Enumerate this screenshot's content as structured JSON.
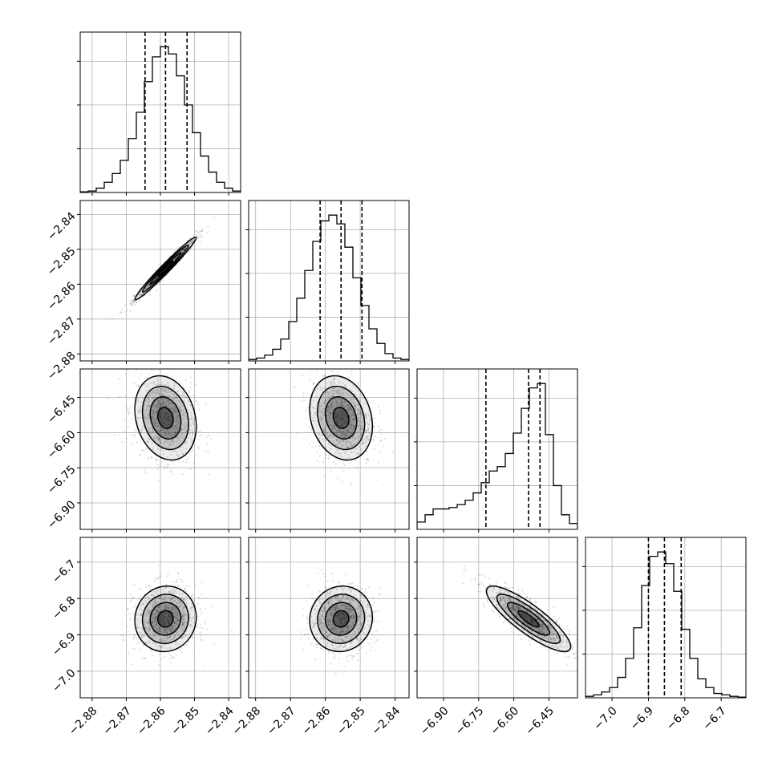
{
  "chart_data": {
    "type": "corner",
    "parameters": [
      {
        "range": [
          -2.8835,
          -2.8365
        ],
        "ticks": [
          -2.88,
          -2.87,
          -2.86,
          -2.85,
          -2.84
        ],
        "tick_labels": [
          "−2.88",
          "−2.87",
          "−2.86",
          "−2.85",
          "−2.84"
        ],
        "quantiles": [
          -2.8645,
          -2.8585,
          -2.8522
        ],
        "mean": -2.8585,
        "sd": 0.0045
      },
      {
        "range": [
          -2.882,
          -2.836
        ],
        "ticks": [
          -2.88,
          -2.87,
          -2.86,
          -2.85,
          -2.84
        ],
        "tick_labels": [
          "−2.88",
          "−2.87",
          "−2.86",
          "−2.85",
          "−2.84"
        ],
        "quantiles": [
          -2.8615,
          -2.8555,
          -2.8495
        ],
        "mean": -2.8555,
        "sd": 0.0045
      },
      {
        "range": [
          -7.013,
          -6.328
        ],
        "ticks": [
          -6.9,
          -6.75,
          -6.6,
          -6.45
        ],
        "tick_labels": [
          "−6.90",
          "−6.75",
          "−6.60",
          "−6.45"
        ],
        "quantiles": [
          -6.719,
          -6.537,
          -6.488
        ],
        "mean": -6.537,
        "sd": 0.09
      },
      {
        "range": [
          -7.073,
          -6.632
        ],
        "ticks": [
          -7.0,
          -6.9,
          -6.8,
          -6.7
        ],
        "tick_labels": [
          "−7.0",
          "−6.9",
          "−6.8",
          "−6.7"
        ],
        "quantiles": [
          -6.9,
          -6.856,
          -6.81
        ],
        "mean": -6.856,
        "sd": 0.045
      }
    ],
    "histograms": [
      [
        0.005,
        0.01,
        0.03,
        0.07,
        0.13,
        0.22,
        0.37,
        0.55,
        0.76,
        0.93,
        1.0,
        0.95,
        0.8,
        0.6,
        0.41,
        0.25,
        0.14,
        0.07,
        0.03,
        0.01
      ],
      [
        0.01,
        0.02,
        0.04,
        0.08,
        0.15,
        0.27,
        0.43,
        0.62,
        0.82,
        0.96,
        1.0,
        0.94,
        0.78,
        0.57,
        0.38,
        0.22,
        0.12,
        0.05,
        0.02,
        0.01
      ],
      [
        0.05,
        0.1,
        0.14,
        0.14,
        0.15,
        0.17,
        0.2,
        0.25,
        0.32,
        0.4,
        0.43,
        0.52,
        0.66,
        0.83,
        0.97,
        1.0,
        0.65,
        0.3,
        0.1,
        0.04
      ],
      [
        0.01,
        0.02,
        0.04,
        0.07,
        0.14,
        0.27,
        0.48,
        0.77,
        0.97,
        1.0,
        0.92,
        0.73,
        0.47,
        0.27,
        0.13,
        0.07,
        0.03,
        0.02,
        0.01,
        0.005
      ]
    ],
    "correlations": {
      "1_0": 0.98,
      "2_0": -0.2,
      "2_1": -0.2,
      "3_0": 0.05,
      "3_1": 0.05,
      "3_2": -0.85
    },
    "y_axis_labels": {
      "1": [
        "−2.88",
        "−2.87",
        "−2.86",
        "−2.85",
        "−2.84"
      ],
      "2": [
        "−6.90",
        "−6.75",
        "−6.60",
        "−6.45"
      ],
      "3": [
        "−7.0",
        "−6.9",
        "−6.8",
        "−6.7"
      ]
    },
    "grid": true,
    "n_params": 4,
    "n_hist_bins": 20
  }
}
